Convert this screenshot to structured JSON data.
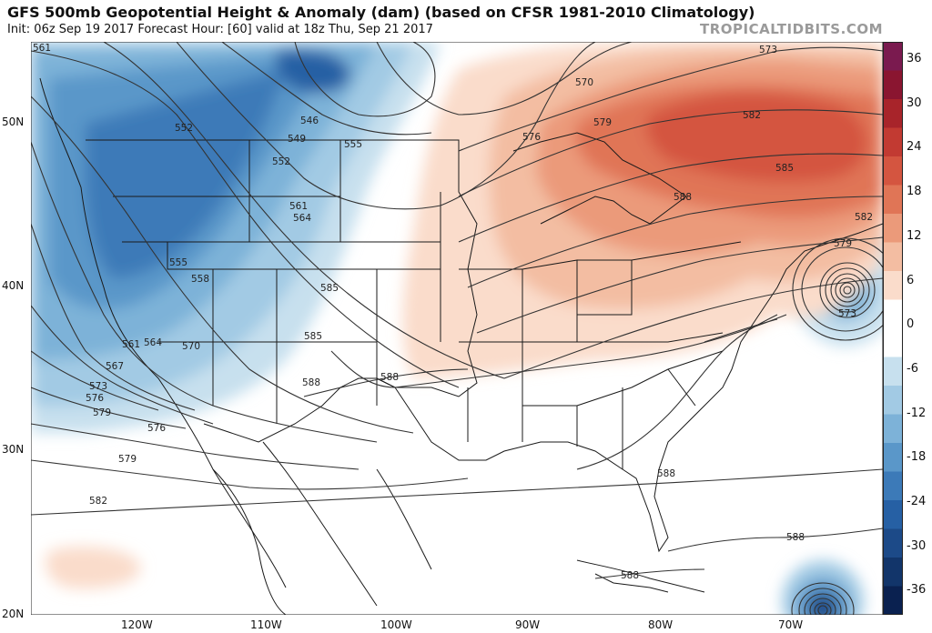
{
  "header": {
    "title": "GFS 500mb Geopotential Height & Anomaly (dam) (based on CFSR 1981-2010 Climatology)",
    "subtitle": "Init: 06z Sep 19 2017   Forecast Hour: [60]   valid at 18z Thu, Sep 21 2017",
    "brand": "TROPICALTIDBITS.COM"
  },
  "axes": {
    "lat_labels": [
      "50N",
      "40N",
      "30N",
      "20N"
    ],
    "lon_labels": [
      "120W",
      "110W",
      "100W",
      "90W",
      "80W",
      "70W"
    ]
  },
  "colorbar": {
    "labels": [
      "36",
      "30",
      "24",
      "18",
      "12",
      "6",
      "0",
      "-6",
      "-12",
      "-18",
      "-24",
      "-30",
      "-36"
    ],
    "colors_top_to_bottom": [
      "#7a1a4f",
      "#8a1530",
      "#a8242a",
      "#c23a32",
      "#d45540",
      "#e07556",
      "#eb9a7a",
      "#f3bda2",
      "#fadccb",
      "#ffffff",
      "#ffffff",
      "#c7e0ee",
      "#a2cae4",
      "#7db2d8",
      "#5a97c9",
      "#3c7ab8",
      "#2660a4",
      "#1c4a88",
      "#12356a",
      "#0a2150"
    ]
  },
  "contours": {
    "labels": [
      "561",
      "552",
      "546",
      "549",
      "555",
      "552",
      "561",
      "564",
      "555",
      "558",
      "561",
      "564",
      "570",
      "567",
      "573",
      "576",
      "579",
      "576",
      "579",
      "582",
      "585",
      "585",
      "588",
      "588",
      "573",
      "570",
      "576",
      "579",
      "582",
      "585",
      "588",
      "582",
      "579",
      "573",
      "588",
      "588",
      "588"
    ]
  }
}
